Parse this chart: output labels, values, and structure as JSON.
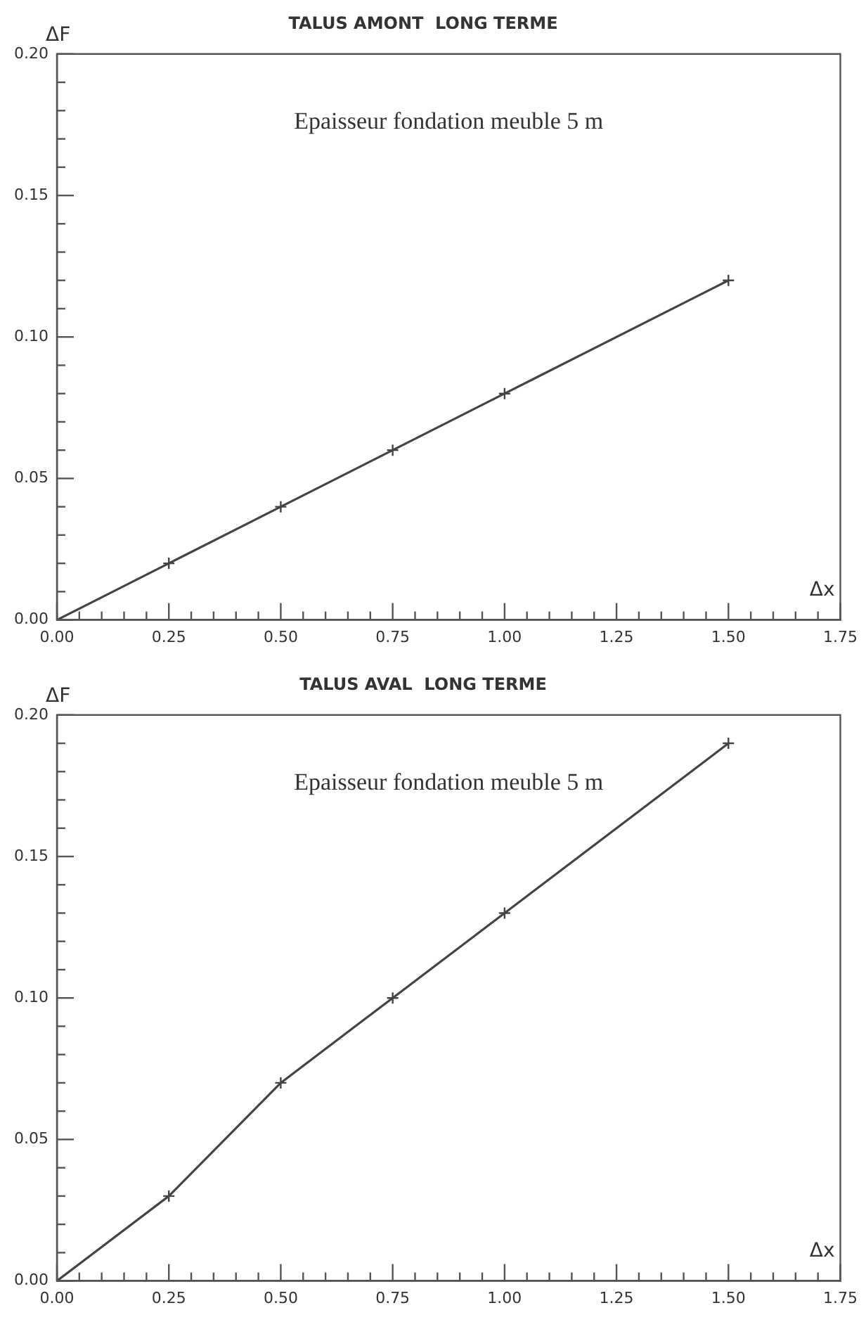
{
  "chart_data": [
    {
      "type": "line",
      "title": "TALUS AMONT  LONG TERME",
      "xlabel": "Δx",
      "ylabel": "ΔF",
      "annotations": [
        "Epaisseur fondation meuble 5 m"
      ],
      "x": [
        0,
        0.25,
        0.5,
        0.75,
        1,
        1.5
      ],
      "series": [
        {
          "color": "#444444",
          "values": [
            0,
            0.02,
            0.04,
            0.06,
            0.08,
            0.12
          ]
        }
      ],
      "xlim": [
        0,
        1.75
      ],
      "ylim": [
        0,
        0.2
      ],
      "xticks": [
        {
          "value": 0,
          "label": "0.00"
        },
        {
          "value": 0.25,
          "label": "0.25"
        },
        {
          "value": 0.5,
          "label": "0.50"
        },
        {
          "value": 0.75,
          "label": "0.75"
        },
        {
          "value": 1,
          "label": "1.00"
        },
        {
          "value": 1.25,
          "label": "1.25"
        },
        {
          "value": 1.5,
          "label": "1.50"
        },
        {
          "value": 1.75,
          "label": "1.75"
        }
      ],
      "yticks": [
        {
          "value": 0,
          "label": "0.00"
        },
        {
          "value": 0.05,
          "label": "0.05"
        },
        {
          "value": 0.1,
          "label": "0.10"
        },
        {
          "value": 0.15,
          "label": "0.15"
        },
        {
          "value": 0.2,
          "label": "0.20"
        }
      ],
      "grid": false,
      "legend": false,
      "marker": "cross",
      "line_style": "solid"
    },
    {
      "type": "line",
      "title": "TALUS AVAL  LONG TERME",
      "xlabel": "Δx",
      "ylabel": "ΔF",
      "annotations": [
        "Epaisseur fondation meuble 5 m"
      ],
      "x": [
        0,
        0.25,
        0.5,
        0.75,
        1,
        1.5
      ],
      "series": [
        {
          "color": "#444444",
          "values": [
            0,
            0.03,
            0.07,
            0.1,
            0.13,
            0.19
          ]
        }
      ],
      "xlim": [
        0,
        1.75
      ],
      "ylim": [
        0,
        0.2
      ],
      "xticks": [
        {
          "value": 0,
          "label": "0.00"
        },
        {
          "value": 0.25,
          "label": "0.25"
        },
        {
          "value": 0.5,
          "label": "0.50"
        },
        {
          "value": 0.75,
          "label": "0.75"
        },
        {
          "value": 1,
          "label": "1.00"
        },
        {
          "value": 1.25,
          "label": "1.25"
        },
        {
          "value": 1.5,
          "label": "1.50"
        },
        {
          "value": 1.75,
          "label": "1.75"
        }
      ],
      "yticks": [
        {
          "value": 0,
          "label": "0.00"
        },
        {
          "value": 0.05,
          "label": "0.05"
        },
        {
          "value": 0.1,
          "label": "0.10"
        },
        {
          "value": 0.15,
          "label": "0.15"
        },
        {
          "value": 0.2,
          "label": "0.20"
        }
      ],
      "grid": false,
      "legend": false,
      "marker": "cross",
      "line_style": "solid"
    }
  ]
}
